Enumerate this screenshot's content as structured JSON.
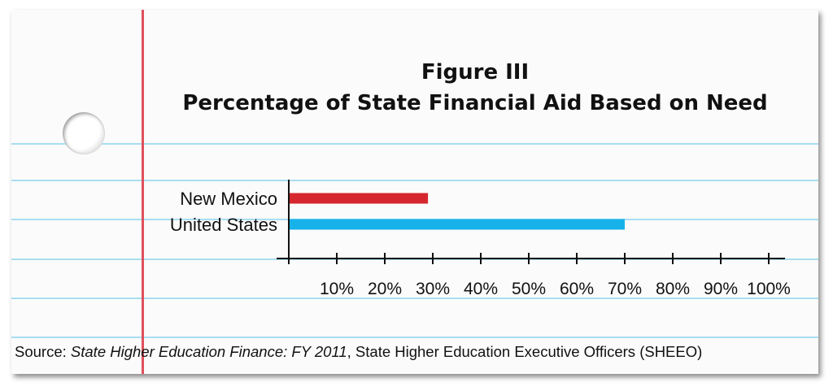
{
  "chart_data": {
    "type": "bar",
    "orientation": "horizontal",
    "title": "Figure III",
    "subtitle": "Percentage of State Financial Aid Based on Need",
    "categories": [
      "New Mexico",
      "United States"
    ],
    "values": [
      29,
      70
    ],
    "colors": [
      "#d6262e",
      "#17b2ea"
    ],
    "x_ticks": [
      "10%",
      "20%",
      "30%",
      "40%",
      "50%",
      "60%",
      "70%",
      "80%",
      "90%",
      "100%"
    ],
    "xlim": [
      0,
      100
    ],
    "xlabel": "",
    "ylabel": "",
    "grid": false
  },
  "source": {
    "prefix": "Source: ",
    "publication": "State Higher Education Finance: FY 2011",
    "suffix": ", State Higher Education Executive Officers (SHEEO)"
  },
  "colors": {
    "paper": "#fbfbfb",
    "rule_line": "#a9ddf2",
    "margin_line": "#e0505a"
  }
}
